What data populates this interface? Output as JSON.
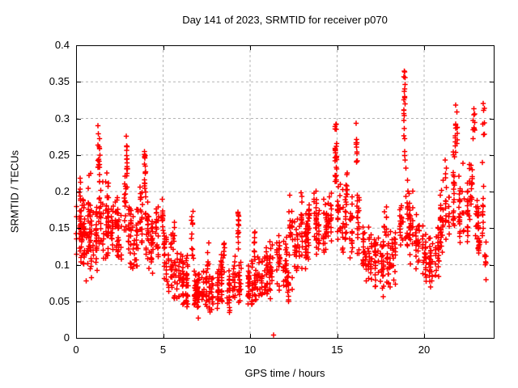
{
  "chart_data": {
    "type": "scatter",
    "title": "Day 141 of 2023, SRMTID for receiver p070",
    "xlabel": "GPS time / hours",
    "ylabel": "SRMTID / TECUs",
    "xlim": [
      0,
      24
    ],
    "ylim": [
      0,
      0.4
    ],
    "xticks": [
      0,
      5,
      10,
      15,
      20
    ],
    "xtick_labels": [
      "0",
      "5",
      "10",
      "15",
      "20"
    ],
    "yticks": [
      0,
      0.05,
      0.1,
      0.15,
      0.2,
      0.25,
      0.3,
      0.35,
      0.4
    ],
    "ytick_labels": [
      "0",
      "0.05",
      "0.1",
      "0.15",
      "0.2",
      "0.25",
      "0.3",
      "0.35",
      "0.4"
    ],
    "legend": "none",
    "grid": {
      "show": true,
      "style": "dashed",
      "color": "#b4b4b4"
    },
    "frame_color": "#000000",
    "marker": {
      "shape": "plus",
      "color": "#ff0000",
      "size": 7
    },
    "clusters_format": [
      "x_center_hours",
      "x_halfwidth_hours",
      "y_min_TECUs",
      "y_max_TECUs",
      "n_points"
    ],
    "clusters": [
      [
        0.15,
        0.15,
        0.08,
        0.21,
        35
      ],
      [
        0.3,
        0.1,
        0.13,
        0.25,
        12
      ],
      [
        0.45,
        0.15,
        0.08,
        0.19,
        25
      ],
      [
        0.7,
        0.15,
        0.1,
        0.25,
        20
      ],
      [
        0.75,
        0.2,
        0.07,
        0.18,
        25
      ],
      [
        1.1,
        0.15,
        0.09,
        0.2,
        25
      ],
      [
        1.35,
        0.08,
        0.2,
        0.295,
        22
      ],
      [
        1.45,
        0.12,
        0.12,
        0.22,
        18
      ],
      [
        1.7,
        0.15,
        0.09,
        0.23,
        30
      ],
      [
        1.95,
        0.12,
        0.1,
        0.2,
        22
      ],
      [
        2.2,
        0.15,
        0.1,
        0.21,
        28
      ],
      [
        2.5,
        0.15,
        0.09,
        0.19,
        26
      ],
      [
        2.75,
        0.1,
        0.13,
        0.24,
        16
      ],
      [
        2.9,
        0.07,
        0.17,
        0.285,
        18
      ],
      [
        3.1,
        0.15,
        0.09,
        0.2,
        26
      ],
      [
        3.4,
        0.15,
        0.08,
        0.2,
        26
      ],
      [
        3.7,
        0.12,
        0.1,
        0.22,
        20
      ],
      [
        3.95,
        0.08,
        0.16,
        0.27,
        18
      ],
      [
        4.1,
        0.15,
        0.09,
        0.2,
        24
      ],
      [
        4.4,
        0.15,
        0.08,
        0.18,
        24
      ],
      [
        4.7,
        0.12,
        0.1,
        0.2,
        20
      ],
      [
        4.9,
        0.08,
        0.13,
        0.2,
        12
      ],
      [
        5.1,
        0.15,
        0.06,
        0.16,
        24
      ],
      [
        5.4,
        0.12,
        0.05,
        0.15,
        20
      ],
      [
        5.6,
        0.08,
        0.09,
        0.17,
        10
      ],
      [
        5.8,
        0.15,
        0.04,
        0.13,
        24
      ],
      [
        6.1,
        0.15,
        0.04,
        0.12,
        24
      ],
      [
        6.45,
        0.15,
        0.03,
        0.12,
        24
      ],
      [
        6.7,
        0.07,
        0.1,
        0.19,
        12
      ],
      [
        6.8,
        0.15,
        0.03,
        0.11,
        22
      ],
      [
        7.1,
        0.15,
        0.02,
        0.1,
        26
      ],
      [
        7.4,
        0.15,
        0.03,
        0.1,
        26
      ],
      [
        7.6,
        0.06,
        0.07,
        0.14,
        8
      ],
      [
        7.75,
        0.15,
        0.02,
        0.1,
        26
      ],
      [
        8.1,
        0.15,
        0.03,
        0.1,
        24
      ],
      [
        8.4,
        0.12,
        0.04,
        0.12,
        20
      ],
      [
        8.45,
        0.06,
        0.09,
        0.15,
        8
      ],
      [
        8.75,
        0.15,
        0.03,
        0.1,
        22
      ],
      [
        9.1,
        0.12,
        0.04,
        0.12,
        20
      ],
      [
        9.3,
        0.07,
        0.11,
        0.2,
        14
      ],
      [
        9.5,
        0.15,
        0.04,
        0.12,
        22
      ],
      [
        9.85,
        0.15,
        0.03,
        0.11,
        24
      ],
      [
        10.2,
        0.15,
        0.04,
        0.11,
        24
      ],
      [
        10.25,
        0.07,
        0.09,
        0.17,
        10
      ],
      [
        10.55,
        0.15,
        0.04,
        0.12,
        24
      ],
      [
        10.9,
        0.15,
        0.05,
        0.13,
        24
      ],
      [
        11.25,
        0.15,
        0.05,
        0.14,
        24
      ],
      [
        11.6,
        0.15,
        0.06,
        0.15,
        24
      ],
      [
        11.95,
        0.15,
        0.06,
        0.15,
        24
      ],
      [
        12.3,
        0.12,
        0.04,
        0.1,
        16
      ],
      [
        12.35,
        0.12,
        0.1,
        0.2,
        18
      ],
      [
        12.7,
        0.15,
        0.08,
        0.17,
        26
      ],
      [
        13.0,
        0.08,
        0.12,
        0.21,
        12
      ],
      [
        13.1,
        0.15,
        0.08,
        0.18,
        24
      ],
      [
        13.45,
        0.15,
        0.1,
        0.19,
        26
      ],
      [
        13.75,
        0.1,
        0.13,
        0.22,
        14
      ],
      [
        13.9,
        0.15,
        0.1,
        0.19,
        24
      ],
      [
        14.25,
        0.15,
        0.1,
        0.2,
        26
      ],
      [
        14.6,
        0.12,
        0.12,
        0.21,
        20
      ],
      [
        14.95,
        0.08,
        0.19,
        0.305,
        26
      ],
      [
        15.1,
        0.12,
        0.12,
        0.22,
        18
      ],
      [
        15.45,
        0.12,
        0.11,
        0.21,
        22
      ],
      [
        15.55,
        0.07,
        0.17,
        0.245,
        10
      ],
      [
        15.8,
        0.15,
        0.1,
        0.2,
        22
      ],
      [
        16.15,
        0.07,
        0.23,
        0.3,
        12
      ],
      [
        16.2,
        0.15,
        0.1,
        0.22,
        22
      ],
      [
        16.55,
        0.15,
        0.07,
        0.17,
        24
      ],
      [
        16.9,
        0.15,
        0.06,
        0.16,
        24
      ],
      [
        17.25,
        0.15,
        0.05,
        0.15,
        24
      ],
      [
        17.6,
        0.15,
        0.05,
        0.15,
        24
      ],
      [
        17.8,
        0.08,
        0.1,
        0.2,
        10
      ],
      [
        17.95,
        0.15,
        0.06,
        0.16,
        22
      ],
      [
        18.3,
        0.15,
        0.07,
        0.17,
        22
      ],
      [
        18.65,
        0.12,
        0.1,
        0.22,
        18
      ],
      [
        18.9,
        0.06,
        0.24,
        0.385,
        22
      ],
      [
        18.95,
        0.1,
        0.12,
        0.24,
        16
      ],
      [
        19.3,
        0.15,
        0.1,
        0.21,
        26
      ],
      [
        19.65,
        0.15,
        0.08,
        0.18,
        26
      ],
      [
        20.0,
        0.15,
        0.07,
        0.16,
        26
      ],
      [
        20.35,
        0.15,
        0.06,
        0.15,
        26
      ],
      [
        20.7,
        0.15,
        0.07,
        0.16,
        24
      ],
      [
        21.05,
        0.15,
        0.1,
        0.22,
        26
      ],
      [
        21.35,
        0.12,
        0.12,
        0.25,
        22
      ],
      [
        21.7,
        0.1,
        0.15,
        0.28,
        22
      ],
      [
        21.85,
        0.07,
        0.24,
        0.335,
        16
      ],
      [
        22.1,
        0.12,
        0.12,
        0.24,
        24
      ],
      [
        22.4,
        0.12,
        0.1,
        0.22,
        22
      ],
      [
        22.7,
        0.1,
        0.14,
        0.27,
        20
      ],
      [
        22.85,
        0.06,
        0.25,
        0.325,
        10
      ],
      [
        23.05,
        0.1,
        0.1,
        0.2,
        20
      ],
      [
        23.15,
        0.06,
        0.11,
        0.14,
        10
      ],
      [
        23.35,
        0.08,
        0.12,
        0.25,
        12
      ],
      [
        23.45,
        0.05,
        0.27,
        0.325,
        7
      ],
      [
        23.55,
        0.08,
        0.07,
        0.15,
        8
      ]
    ],
    "outliers": [
      [
        11.35,
        0.004
      ]
    ]
  }
}
